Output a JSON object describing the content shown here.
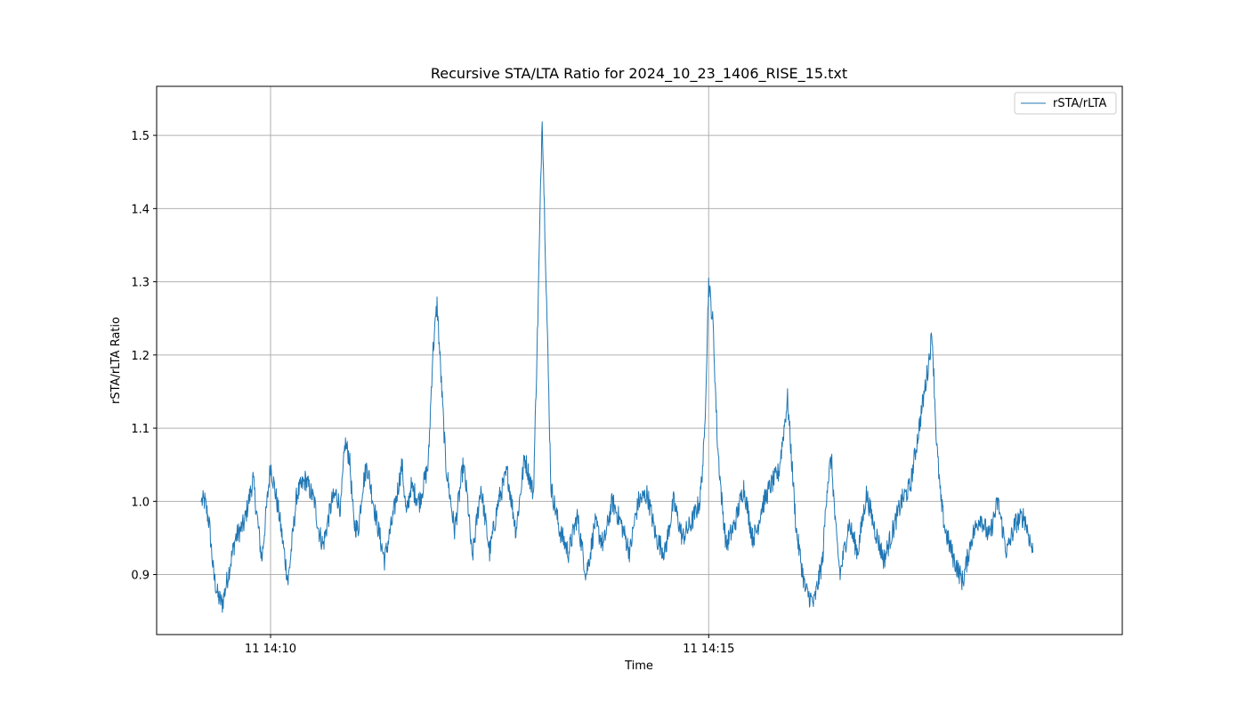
{
  "chart_data": {
    "type": "line",
    "title": "Recursive STA/LTA Ratio for 2024_10_23_1406_RISE_15.txt",
    "xlabel": "Time",
    "ylabel": "rSTA/rLTA Ratio",
    "x_unit": "minutes after 11 14:06",
    "xlim": [
      2.7,
      13.72
    ],
    "ylim": [
      0.818,
      1.567
    ],
    "grid": true,
    "legend_position": "top-right",
    "x_ticks": [
      {
        "value": 4.0,
        "label": "11 14:10"
      },
      {
        "value": 9.0,
        "label": "11 14:15"
      }
    ],
    "y_ticks": [
      {
        "value": 0.9,
        "label": "0.9"
      },
      {
        "value": 1.0,
        "label": "1.0"
      },
      {
        "value": 1.1,
        "label": "1.1"
      },
      {
        "value": 1.2,
        "label": "1.2"
      },
      {
        "value": 1.3,
        "label": "1.3"
      },
      {
        "value": 1.4,
        "label": "1.4"
      },
      {
        "value": 1.5,
        "label": "1.5"
      }
    ],
    "colors": {
      "series": "#1f77b4",
      "grid": "#b0b0b0"
    },
    "series": [
      {
        "name": "rSTA/rLTA",
        "x": [
          3.2,
          3.25,
          3.3,
          3.35,
          3.4,
          3.45,
          3.5,
          3.6,
          3.7,
          3.8,
          3.9,
          4.0,
          4.1,
          4.2,
          4.25,
          4.3,
          4.4,
          4.5,
          4.55,
          4.6,
          4.7,
          4.75,
          4.8,
          4.85,
          4.9,
          4.95,
          5.0,
          5.05,
          5.1,
          5.2,
          5.3,
          5.4,
          5.5,
          5.55,
          5.6,
          5.7,
          5.8,
          5.85,
          5.9,
          6.0,
          6.1,
          6.2,
          6.25,
          6.3,
          6.4,
          6.5,
          6.6,
          6.7,
          6.8,
          6.9,
          7.0,
          7.05,
          7.1,
          7.2,
          7.3,
          7.4,
          7.5,
          7.6,
          7.65,
          7.7,
          7.8,
          7.9,
          8.0,
          8.1,
          8.15,
          8.2,
          8.3,
          8.4,
          8.5,
          8.6,
          8.7,
          8.8,
          8.9,
          8.95,
          9.0,
          9.05,
          9.1,
          9.15,
          9.2,
          9.3,
          9.4,
          9.5,
          9.55,
          9.6,
          9.7,
          9.8,
          9.9,
          10.0,
          10.1,
          10.2,
          10.3,
          10.35,
          10.4,
          10.45,
          10.5,
          10.6,
          10.7,
          10.8,
          10.9,
          11.0,
          11.1,
          11.2,
          11.3,
          11.4,
          11.5,
          11.55,
          11.6,
          11.65,
          11.7,
          11.8,
          11.9,
          12.0,
          12.1,
          12.2,
          12.3,
          12.4,
          12.5,
          12.6,
          12.7
        ],
        "values": [
          1.0,
          1.0,
          0.97,
          0.9,
          0.87,
          0.86,
          0.89,
          0.95,
          0.97,
          1.03,
          0.92,
          1.05,
          0.98,
          0.89,
          0.95,
          1.01,
          1.03,
          1.0,
          0.96,
          0.94,
          1.0,
          1.01,
          0.99,
          1.08,
          1.06,
          0.97,
          0.96,
          1.02,
          1.05,
          0.98,
          0.92,
          0.98,
          1.05,
          0.98,
          1.02,
          1.0,
          1.05,
          1.2,
          1.27,
          1.05,
          0.96,
          1.05,
          1.0,
          0.92,
          1.02,
          0.93,
          1.0,
          1.04,
          0.96,
          1.06,
          1.01,
          1.25,
          1.53,
          1.02,
          0.96,
          0.93,
          0.98,
          0.9,
          0.93,
          0.97,
          0.94,
          1.0,
          0.97,
          0.93,
          0.97,
          1.0,
          1.01,
          0.95,
          0.93,
          1.0,
          0.95,
          0.97,
          1.0,
          1.08,
          1.3,
          1.24,
          1.08,
          1.0,
          0.94,
          0.97,
          1.02,
          0.95,
          0.96,
          0.99,
          1.02,
          1.04,
          1.14,
          0.96,
          0.88,
          0.86,
          0.92,
          1.02,
          1.06,
          0.96,
          0.9,
          0.97,
          0.93,
          1.01,
          0.96,
          0.92,
          0.96,
          1.0,
          1.02,
          1.1,
          1.18,
          1.23,
          1.08,
          1.0,
          0.96,
          0.92,
          0.89,
          0.95,
          0.98,
          0.95,
          1.0,
          0.93,
          0.97,
          0.98,
          0.93
        ]
      }
    ]
  }
}
